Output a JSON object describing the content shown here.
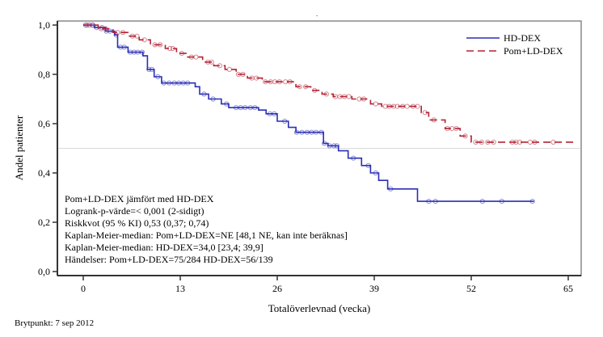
{
  "chart_data": {
    "type": "line",
    "subtype": "kaplan-meier-step",
    "title": ".",
    "xlabel": "Totalöverlevnad (vecka)",
    "ylabel": "Andel patienter",
    "xlim": [
      -3.5,
      66.5
    ],
    "ylim": [
      0,
      1.0
    ],
    "xticks": [
      0,
      13,
      26,
      39,
      52,
      65
    ],
    "xtick_labels": [
      "0",
      "13",
      "26",
      "39",
      "52",
      "65"
    ],
    "yticks": [
      0.0,
      0.2,
      0.4,
      0.6,
      0.8,
      1.0
    ],
    "ytick_labels": [
      "0,0",
      "0,2",
      "0,4",
      "0,6",
      "0,8",
      "1,0"
    ],
    "reference_line": {
      "y": 0.5,
      "color": "#d9d9d9"
    },
    "grid": false,
    "legend_position": "top-right",
    "series": [
      {
        "name": "HD-DEX",
        "color": "#2a2fb5",
        "style": "solid",
        "steps": [
          [
            0,
            1.0
          ],
          [
            1.5,
            0.99
          ],
          [
            3,
            0.975
          ],
          [
            4.2,
            0.96
          ],
          [
            4.6,
            0.91
          ],
          [
            6,
            0.89
          ],
          [
            8,
            0.875
          ],
          [
            8.6,
            0.82
          ],
          [
            9.5,
            0.79
          ],
          [
            10.5,
            0.765
          ],
          [
            15,
            0.75
          ],
          [
            15.6,
            0.72
          ],
          [
            16.8,
            0.7
          ],
          [
            18.5,
            0.68
          ],
          [
            19.5,
            0.665
          ],
          [
            23.5,
            0.655
          ],
          [
            24.5,
            0.64
          ],
          [
            26,
            0.61
          ],
          [
            27.5,
            0.585
          ],
          [
            28.5,
            0.565
          ],
          [
            32.2,
            0.52
          ],
          [
            32.8,
            0.51
          ],
          [
            34.2,
            0.49
          ],
          [
            35.5,
            0.46
          ],
          [
            37.3,
            0.43
          ],
          [
            38.5,
            0.4
          ],
          [
            39.6,
            0.37
          ],
          [
            40.8,
            0.335
          ],
          [
            44.8,
            0.285
          ],
          [
            60.4,
            0.285
          ]
        ],
        "censor_times": [
          0.3,
          0.8,
          1.3,
          1.8,
          2.5,
          3.1,
          3.6,
          4.4,
          5.0,
          5.5,
          6.3,
          6.8,
          7.3,
          7.9,
          8.8,
          9.2,
          10.0,
          10.8,
          11.5,
          12.2,
          12.8,
          13.4,
          14.0,
          16.2,
          17.4,
          19.2,
          20.5,
          21.1,
          21.7,
          22.4,
          23.0,
          25.0,
          25.6,
          27.0,
          28.6,
          29.3,
          30.0,
          30.6,
          31.2,
          31.9,
          32.3,
          33.0,
          33.6,
          34.0,
          36.2,
          38.2,
          39.2,
          41.2,
          46.3,
          47.2,
          53.5,
          56.1,
          60.2
        ]
      },
      {
        "name": "Pom+LD-DEX",
        "color": "#b22234",
        "style": "dashed",
        "steps": [
          [
            0,
            1.0
          ],
          [
            2,
            0.985
          ],
          [
            4,
            0.97
          ],
          [
            6,
            0.955
          ],
          [
            7.5,
            0.94
          ],
          [
            9,
            0.92
          ],
          [
            11,
            0.905
          ],
          [
            12.5,
            0.885
          ],
          [
            14,
            0.87
          ],
          [
            16,
            0.85
          ],
          [
            17.5,
            0.835
          ],
          [
            19,
            0.82
          ],
          [
            20.5,
            0.8
          ],
          [
            22,
            0.785
          ],
          [
            24,
            0.77
          ],
          [
            28.5,
            0.75
          ],
          [
            30.5,
            0.735
          ],
          [
            32,
            0.72
          ],
          [
            33.5,
            0.71
          ],
          [
            36,
            0.7
          ],
          [
            38.5,
            0.68
          ],
          [
            40,
            0.67
          ],
          [
            45.3,
            0.645
          ],
          [
            46.3,
            0.615
          ],
          [
            48.5,
            0.58
          ],
          [
            50.5,
            0.55
          ],
          [
            52,
            0.525
          ],
          [
            66,
            0.525
          ]
        ],
        "censor_times": [
          0.5,
          1.2,
          2.4,
          3.0,
          4.6,
          5.3,
          6.6,
          7.2,
          8.2,
          9.6,
          10.3,
          11.6,
          12.0,
          13.2,
          14.5,
          15.1,
          16.7,
          17.2,
          18.3,
          19.6,
          20.8,
          21.4,
          22.6,
          23.2,
          24.4,
          25.1,
          25.7,
          26.3,
          27.1,
          27.7,
          29.0,
          29.8,
          31.0,
          32.6,
          33.8,
          34.4,
          35.0,
          35.6,
          37.0,
          37.6,
          39.2,
          40.5,
          41.0,
          41.6,
          42.1,
          42.8,
          43.4,
          44.2,
          44.8,
          45.8,
          47.0,
          48.8,
          49.4,
          50.0,
          51.2,
          52.6,
          53.4,
          54.2,
          55.0,
          57.5,
          58.0,
          58.5,
          59.9,
          60.5,
          63.0
        ]
      }
    ],
    "annotations": [
      "Pom+LD-DEX jämfört med HD-DEX",
      "Logrank-p-värde=< 0,001 (2-sidigt)",
      "Riskkvot (95 % KI) 0,53 (0,37; 0,74)",
      "Kaplan-Meier-median:  Pom+LD-DEX=NE [48,1 NE, kan inte beräknas]",
      "Kaplan-Meier-median:  HD-DEX=34,0 [23,4; 39,9]",
      "Händelser: Pom+LD-DEX=75/284 HD-DEX=56/139"
    ]
  },
  "footnote": "Brytpunkt: 7 sep 2012"
}
